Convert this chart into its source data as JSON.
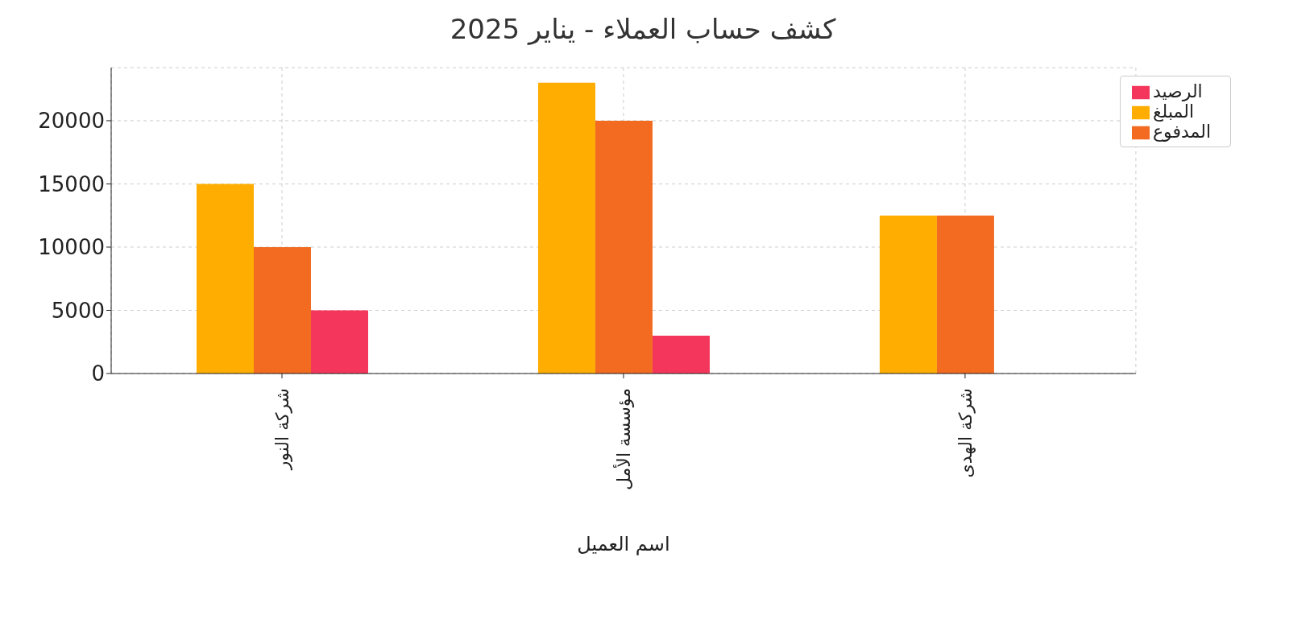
{
  "chart_data": {
    "type": "bar",
    "title": "كشف حساب العملاء - يناير 2025",
    "xlabel": "اسم العميل",
    "categories": [
      "شركة النور",
      "مؤسسة الأمل",
      "شركة الهدى"
    ],
    "series": [
      {
        "name": "المبلغ",
        "color": "#ffad00",
        "values": [
          15000,
          23000,
          12500
        ]
      },
      {
        "name": "المدفوع",
        "color": "#f26b21",
        "values": [
          10000,
          20000,
          12500
        ]
      },
      {
        "name": "الرصيد",
        "color": "#f5365c",
        "values": [
          5000,
          3000,
          0
        ]
      }
    ],
    "ylim": [
      0,
      24200
    ],
    "yticks": [
      0,
      5000,
      10000,
      15000,
      20000
    ],
    "grid": true,
    "legend": "top right"
  }
}
